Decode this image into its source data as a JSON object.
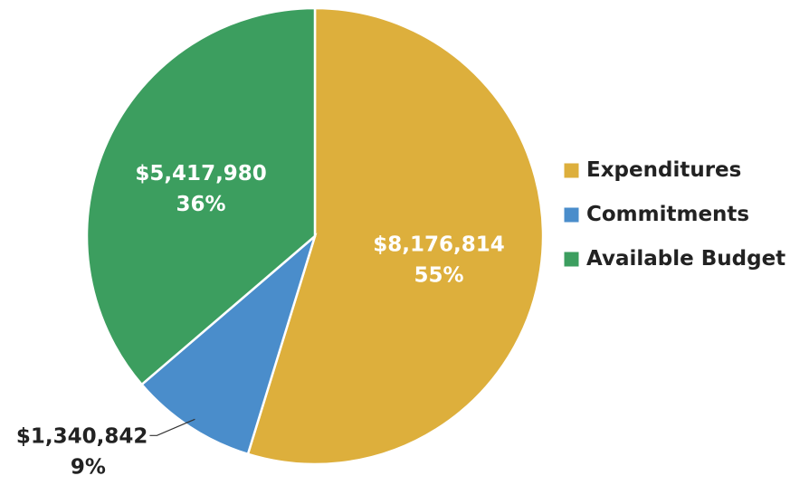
{
  "chart_data": {
    "type": "pie",
    "title": "",
    "legend_position": "right",
    "start_angle_deg": 0,
    "direction": "clockwise",
    "slices": [
      {
        "name": "Expenditures",
        "value": 8176814,
        "value_label": "$8,176,814",
        "percent_label": "55%",
        "color": "#DDAF3C",
        "label_position": "inside"
      },
      {
        "name": "Commitments",
        "value": 1340842,
        "value_label": "$1,340,842",
        "percent_label": "9%",
        "color": "#4A8DCB",
        "label_position": "outside"
      },
      {
        "name": "Available Budget",
        "value": 5417980,
        "value_label": "$5,417,980",
        "percent_label": "36%",
        "color": "#3C9E5F",
        "label_position": "inside"
      }
    ]
  }
}
